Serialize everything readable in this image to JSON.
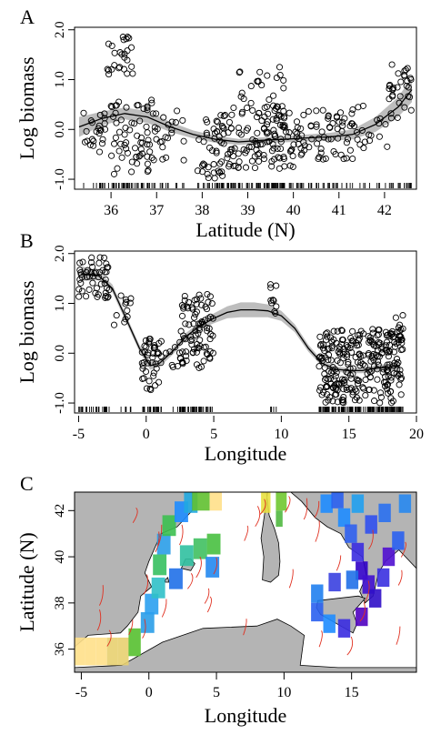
{
  "panels": [
    {
      "letter": "A",
      "ylabel": "Log biomass",
      "xlabel": "Latitude (N)",
      "xticks": [
        36,
        37,
        38,
        39,
        40,
        41,
        42
      ],
      "yticks": [
        -1.0,
        0.0,
        1.0,
        2.0
      ],
      "ytick_labels": [
        "-1.0",
        "0.0",
        "1.0",
        "2.0"
      ]
    },
    {
      "letter": "B",
      "ylabel": "Log biomass",
      "xlabel": "Longitude",
      "xticks": [
        -5,
        0,
        5,
        10,
        15,
        20
      ],
      "yticks": [
        -1.0,
        0.0,
        1.0,
        2.0
      ],
      "ytick_labels": [
        "-1.0",
        "0.0",
        "1.0",
        "2.0"
      ]
    },
    {
      "letter": "C",
      "ylabel": "Latitude (N)",
      "xlabel": "Longitude",
      "xticks": [
        -5,
        0,
        5,
        10,
        15
      ],
      "yticks": [
        36,
        38,
        40,
        42
      ]
    }
  ],
  "chart_data": [
    {
      "type": "scatter",
      "panel": "A",
      "xlabel": "Latitude (N)",
      "ylabel": "Log biomass",
      "xlim": [
        35.2,
        42.7
      ],
      "ylim": [
        -1.2,
        2.05
      ],
      "smooth_fit": {
        "x": [
          35.3,
          35.8,
          36.3,
          36.8,
          37.3,
          37.8,
          38.3,
          38.8,
          39.3,
          39.8,
          40.3,
          40.8,
          41.3,
          41.8,
          42.3,
          42.6
        ],
        "y": [
          0.05,
          0.22,
          0.32,
          0.25,
          0.05,
          -0.1,
          -0.2,
          -0.25,
          -0.22,
          -0.2,
          -0.17,
          -0.15,
          -0.1,
          0.1,
          0.45,
          0.8
        ],
        "se_low": [
          -0.15,
          0.08,
          0.2,
          0.13,
          -0.05,
          -0.18,
          -0.27,
          -0.31,
          -0.28,
          -0.26,
          -0.24,
          -0.23,
          -0.2,
          -0.05,
          0.25,
          0.55
        ],
        "se_high": [
          0.25,
          0.36,
          0.44,
          0.37,
          0.15,
          -0.02,
          -0.13,
          -0.19,
          -0.16,
          -0.14,
          -0.1,
          -0.07,
          0.0,
          0.25,
          0.65,
          1.05
        ]
      },
      "point_clusters": [
        {
          "x_range": [
            35.4,
            35.9
          ],
          "y_range": [
            -0.5,
            0.4
          ],
          "count": 24
        },
        {
          "x_range": [
            36.0,
            36.9
          ],
          "y_range": [
            -0.9,
            0.6
          ],
          "count": 60
        },
        {
          "x_range": [
            35.9,
            36.5
          ],
          "y_range": [
            1.1,
            1.9
          ],
          "count": 26
        },
        {
          "x_range": [
            36.8,
            37.6
          ],
          "y_range": [
            -0.7,
            0.4
          ],
          "count": 26
        },
        {
          "x_range": [
            37.9,
            38.5
          ],
          "y_range": [
            -1.0,
            0.3
          ],
          "count": 45
        },
        {
          "x_range": [
            38.5,
            40.0
          ],
          "y_range": [
            -0.8,
            0.5
          ],
          "count": 120
        },
        {
          "x_range": [
            38.8,
            39.8
          ],
          "y_range": [
            0.4,
            1.3
          ],
          "count": 22
        },
        {
          "x_range": [
            40.0,
            41.4
          ],
          "y_range": [
            -0.6,
            0.4
          ],
          "count": 70
        },
        {
          "x_range": [
            41.4,
            42.1
          ],
          "y_range": [
            -0.4,
            0.5
          ],
          "count": 16
        },
        {
          "x_range": [
            42.1,
            42.6
          ],
          "y_range": [
            0.2,
            1.4
          ],
          "count": 32
        }
      ]
    },
    {
      "type": "scatter",
      "panel": "B",
      "xlabel": "Longitude",
      "ylabel": "Log biomass",
      "xlim": [
        -5.3,
        20
      ],
      "ylim": [
        -1.2,
        2.05
      ],
      "smooth_fit": {
        "x": [
          -4.8,
          -3.5,
          -2.5,
          -1.5,
          -0.5,
          0.3,
          1.0,
          2.0,
          3.0,
          4.0,
          5.0,
          6.0,
          7.0,
          8.0,
          9.0,
          10.0,
          11.0,
          12.0,
          13.0,
          14.0,
          15.0,
          16.0,
          17.0,
          18.0,
          18.7
        ],
        "y": [
          1.6,
          1.55,
          1.3,
          0.7,
          0.1,
          -0.25,
          -0.2,
          0.05,
          0.35,
          0.55,
          0.7,
          0.82,
          0.87,
          0.87,
          0.85,
          0.75,
          0.5,
          0.1,
          -0.2,
          -0.32,
          -0.35,
          -0.35,
          -0.3,
          -0.28,
          -0.25
        ],
        "se_low": [
          1.45,
          1.47,
          1.22,
          0.63,
          0.03,
          -0.33,
          -0.27,
          -0.02,
          0.28,
          0.48,
          0.6,
          0.7,
          0.72,
          0.72,
          0.72,
          0.65,
          0.42,
          0.03,
          -0.26,
          -0.37,
          -0.4,
          -0.4,
          -0.36,
          -0.35,
          -0.35
        ],
        "se_high": [
          1.75,
          1.63,
          1.38,
          0.77,
          0.17,
          -0.17,
          -0.13,
          0.12,
          0.42,
          0.62,
          0.8,
          0.94,
          1.02,
          1.02,
          0.98,
          0.85,
          0.58,
          0.17,
          -0.14,
          -0.27,
          -0.3,
          -0.3,
          -0.24,
          -0.21,
          -0.15
        ]
      },
      "point_clusters": [
        {
          "x_range": [
            -5.0,
            -2.7
          ],
          "y_range": [
            1.1,
            1.95
          ],
          "count": 50
        },
        {
          "x_range": [
            -2.5,
            -1.0
          ],
          "y_range": [
            0.5,
            1.2
          ],
          "count": 12
        },
        {
          "x_range": [
            -0.3,
            1.0
          ],
          "y_range": [
            -0.75,
            0.3
          ],
          "count": 40
        },
        {
          "x_range": [
            1.0,
            3.0
          ],
          "y_range": [
            -0.3,
            0.3
          ],
          "count": 18
        },
        {
          "x_range": [
            2.5,
            5.0
          ],
          "y_range": [
            -0.3,
            1.2
          ],
          "count": 80
        },
        {
          "x_range": [
            9.2,
            9.8
          ],
          "y_range": [
            0.8,
            1.4
          ],
          "count": 10
        },
        {
          "x_range": [
            12.8,
            19.0
          ],
          "y_range": [
            -1.0,
            0.5
          ],
          "count": 280
        },
        {
          "x_range": [
            18.0,
            19.0
          ],
          "y_range": [
            0.3,
            0.8
          ],
          "count": 6
        }
      ]
    },
    {
      "type": "heatmap",
      "panel": "C",
      "xlabel": "Longitude",
      "ylabel": "Latitude (N)",
      "xlim": [
        -5.5,
        19.8
      ],
      "ylim": [
        35,
        42.8
      ],
      "colors": {
        "land": "#b4b4b4",
        "sea": "#ffffff",
        "low": "#3000c8",
        "mid": "#1e8cff",
        "high": "#ffe08a",
        "contour": "#e03020"
      }
    }
  ]
}
